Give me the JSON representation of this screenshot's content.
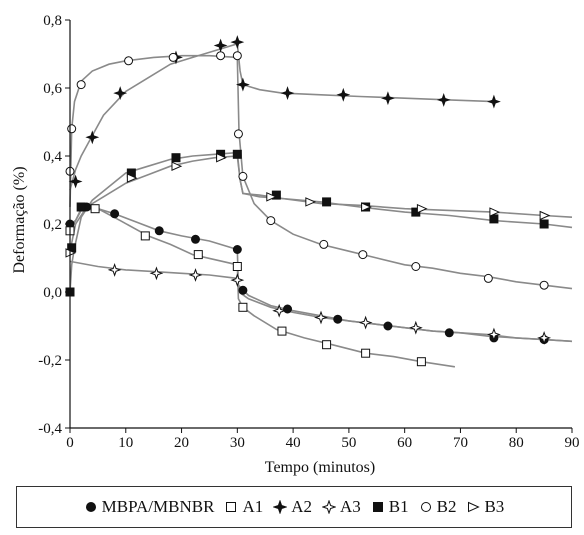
{
  "chart_data": {
    "type": "line",
    "xlabel": "Tempo (minutos)",
    "ylabel": "Deformação (%)",
    "xlim": [
      0,
      90
    ],
    "ylim": [
      -0.4,
      0.8
    ],
    "x_ticks": [
      "0",
      "10",
      "20",
      "30",
      "40",
      "50",
      "60",
      "70",
      "80",
      "90"
    ],
    "y_ticks": [
      "-0,4",
      "-0,2",
      "0,0",
      "0,2",
      "0,4",
      "0,6",
      "0,8"
    ],
    "legend_position": "bottom",
    "grid": false,
    "line_color": "#8a8a8a",
    "series": [
      {
        "name": "MBPA/MBNBR",
        "marker": "circle-filled",
        "curve": [
          [
            0,
            0.2
          ],
          [
            1,
            0.21
          ],
          [
            2,
            0.245
          ],
          [
            3,
            0.25
          ],
          [
            5,
            0.245
          ],
          [
            8,
            0.23
          ],
          [
            12,
            0.205
          ],
          [
            16,
            0.18
          ],
          [
            20,
            0.165
          ],
          [
            25,
            0.15
          ],
          [
            30,
            0.125
          ],
          [
            30.2,
            0.02
          ],
          [
            32,
            -0.01
          ],
          [
            36,
            -0.04
          ],
          [
            40,
            -0.055
          ],
          [
            45,
            -0.07
          ],
          [
            50,
            -0.085
          ],
          [
            55,
            -0.095
          ],
          [
            60,
            -0.105
          ],
          [
            65,
            -0.115
          ],
          [
            70,
            -0.12
          ],
          [
            75,
            -0.13
          ],
          [
            80,
            -0.135
          ],
          [
            85,
            -0.14
          ],
          [
            90,
            -0.145
          ]
        ],
        "markers": [
          [
            0,
            0.2
          ],
          [
            3,
            0.25
          ],
          [
            8,
            0.23
          ],
          [
            16,
            0.18
          ],
          [
            22.5,
            0.155
          ],
          [
            30,
            0.125
          ],
          [
            31,
            0.005
          ],
          [
            39,
            -0.05
          ],
          [
            48,
            -0.08
          ],
          [
            57,
            -0.1
          ],
          [
            68,
            -0.12
          ],
          [
            76,
            -0.135
          ],
          [
            85,
            -0.14
          ]
        ]
      },
      {
        "name": "A1",
        "marker": "square-open",
        "curve": [
          [
            0,
            0.18
          ],
          [
            2,
            0.24
          ],
          [
            5,
            0.245
          ],
          [
            9,
            0.21
          ],
          [
            14,
            0.165
          ],
          [
            18,
            0.14
          ],
          [
            22,
            0.11
          ],
          [
            26,
            0.095
          ],
          [
            30,
            0.08
          ],
          [
            30.2,
            -0.02
          ],
          [
            31,
            -0.045
          ],
          [
            33,
            -0.07
          ],
          [
            37,
            -0.11
          ],
          [
            42,
            -0.135
          ],
          [
            47,
            -0.155
          ],
          [
            53,
            -0.18
          ],
          [
            58,
            -0.19
          ],
          [
            63,
            -0.205
          ],
          [
            69,
            -0.22
          ]
        ],
        "markers": [
          [
            0,
            0.18
          ],
          [
            4.5,
            0.245
          ],
          [
            13.5,
            0.165
          ],
          [
            23,
            0.11
          ],
          [
            30,
            0.075
          ],
          [
            31,
            -0.045
          ],
          [
            38,
            -0.115
          ],
          [
            46,
            -0.155
          ],
          [
            53,
            -0.18
          ],
          [
            63,
            -0.205
          ]
        ]
      },
      {
        "name": "A2",
        "marker": "star-filled",
        "curve": [
          [
            0,
            0.3
          ],
          [
            1,
            0.36
          ],
          [
            2,
            0.4
          ],
          [
            4,
            0.46
          ],
          [
            6,
            0.52
          ],
          [
            10,
            0.59
          ],
          [
            14,
            0.63
          ],
          [
            18,
            0.67
          ],
          [
            22,
            0.69
          ],
          [
            26,
            0.71
          ],
          [
            30,
            0.73
          ],
          [
            30.5,
            0.65
          ],
          [
            31,
            0.61
          ],
          [
            34,
            0.595
          ],
          [
            38,
            0.585
          ],
          [
            45,
            0.58
          ],
          [
            52,
            0.575
          ],
          [
            60,
            0.57
          ],
          [
            68,
            0.565
          ],
          [
            76,
            0.56
          ]
        ],
        "markers": [
          [
            1,
            0.325
          ],
          [
            4,
            0.455
          ],
          [
            9,
            0.585
          ],
          [
            19,
            0.69
          ],
          [
            27,
            0.725
          ],
          [
            30,
            0.735
          ],
          [
            31,
            0.61
          ],
          [
            39,
            0.585
          ],
          [
            49,
            0.58
          ],
          [
            57,
            0.57
          ],
          [
            67,
            0.565
          ],
          [
            76,
            0.56
          ]
        ]
      },
      {
        "name": "A3",
        "marker": "star-open",
        "curve": [
          [
            0,
            0.09
          ],
          [
            5,
            0.075
          ],
          [
            10,
            0.065
          ],
          [
            15,
            0.06
          ],
          [
            20,
            0.055
          ],
          [
            25,
            0.05
          ],
          [
            30,
            0.04
          ],
          [
            30.3,
            0.0
          ],
          [
            32,
            -0.02
          ],
          [
            36,
            -0.045
          ],
          [
            40,
            -0.06
          ],
          [
            45,
            -0.075
          ],
          [
            50,
            -0.085
          ],
          [
            55,
            -0.095
          ],
          [
            60,
            -0.105
          ],
          [
            65,
            -0.115
          ],
          [
            70,
            -0.12
          ],
          [
            75,
            -0.125
          ],
          [
            80,
            -0.135
          ],
          [
            85,
            -0.14
          ],
          [
            90,
            -0.145
          ]
        ],
        "markers": [
          [
            8,
            0.065
          ],
          [
            15.5,
            0.055
          ],
          [
            22.5,
            0.05
          ],
          [
            30,
            0.035
          ],
          [
            37.5,
            -0.055
          ],
          [
            45,
            -0.075
          ],
          [
            53,
            -0.09
          ],
          [
            62,
            -0.105
          ],
          [
            76,
            -0.125
          ],
          [
            85,
            -0.135
          ]
        ]
      },
      {
        "name": "B1",
        "marker": "square-filled",
        "curve": [
          [
            0,
            0.0
          ],
          [
            0.3,
            0.08
          ],
          [
            0.8,
            0.13
          ],
          [
            2,
            0.22
          ],
          [
            4,
            0.27
          ],
          [
            7,
            0.31
          ],
          [
            10,
            0.35
          ],
          [
            14,
            0.37
          ],
          [
            18,
            0.39
          ],
          [
            22,
            0.4
          ],
          [
            26,
            0.405
          ],
          [
            30,
            0.41
          ],
          [
            30.5,
            0.33
          ],
          [
            31,
            0.29
          ],
          [
            34,
            0.285
          ],
          [
            38,
            0.275
          ],
          [
            45,
            0.265
          ],
          [
            52,
            0.25
          ],
          [
            60,
            0.235
          ],
          [
            68,
            0.225
          ],
          [
            76,
            0.21
          ],
          [
            85,
            0.2
          ],
          [
            90,
            0.19
          ]
        ],
        "markers": [
          [
            0,
            0.0
          ],
          [
            0.3,
            0.13
          ],
          [
            2,
            0.25
          ],
          [
            11,
            0.35
          ],
          [
            19,
            0.395
          ],
          [
            27,
            0.405
          ],
          [
            30,
            0.405
          ],
          [
            37,
            0.285
          ],
          [
            46,
            0.265
          ],
          [
            53,
            0.25
          ],
          [
            62,
            0.235
          ],
          [
            76,
            0.215
          ],
          [
            85,
            0.2
          ]
        ]
      },
      {
        "name": "B2",
        "marker": "circle-open",
        "curve": [
          [
            0,
            0.25
          ],
          [
            0.3,
            0.48
          ],
          [
            0.8,
            0.56
          ],
          [
            2,
            0.62
          ],
          [
            4,
            0.65
          ],
          [
            7,
            0.67
          ],
          [
            10,
            0.68
          ],
          [
            15,
            0.69
          ],
          [
            20,
            0.695
          ],
          [
            25,
            0.695
          ],
          [
            30,
            0.69
          ],
          [
            30.3,
            0.47
          ],
          [
            31,
            0.34
          ],
          [
            33,
            0.26
          ],
          [
            36,
            0.21
          ],
          [
            40,
            0.17
          ],
          [
            45,
            0.14
          ],
          [
            50,
            0.12
          ],
          [
            55,
            0.1
          ],
          [
            60,
            0.08
          ],
          [
            65,
            0.07
          ],
          [
            70,
            0.055
          ],
          [
            75,
            0.045
          ],
          [
            80,
            0.03
          ],
          [
            85,
            0.02
          ],
          [
            90,
            0.01
          ]
        ],
        "markers": [
          [
            0,
            0.355
          ],
          [
            0.3,
            0.48
          ],
          [
            2,
            0.61
          ],
          [
            10.5,
            0.68
          ],
          [
            18.5,
            0.69
          ],
          [
            27,
            0.695
          ],
          [
            30,
            0.695
          ],
          [
            30.2,
            0.465
          ],
          [
            31,
            0.34
          ],
          [
            36,
            0.21
          ],
          [
            45.5,
            0.14
          ],
          [
            52.5,
            0.11
          ],
          [
            62,
            0.075
          ],
          [
            75,
            0.04
          ],
          [
            85,
            0.02
          ]
        ]
      },
      {
        "name": "B3",
        "marker": "triangle-open",
        "curve": [
          [
            0,
            0.12
          ],
          [
            1,
            0.2
          ],
          [
            3,
            0.25
          ],
          [
            6,
            0.28
          ],
          [
            10,
            0.32
          ],
          [
            14,
            0.345
          ],
          [
            18,
            0.37
          ],
          [
            22,
            0.385
          ],
          [
            26,
            0.395
          ],
          [
            30,
            0.4
          ],
          [
            30.5,
            0.33
          ],
          [
            31,
            0.29
          ],
          [
            34,
            0.28
          ],
          [
            38,
            0.275
          ],
          [
            45,
            0.26
          ],
          [
            52,
            0.255
          ],
          [
            60,
            0.245
          ],
          [
            68,
            0.24
          ],
          [
            76,
            0.235
          ],
          [
            85,
            0.225
          ],
          [
            90,
            0.22
          ]
        ],
        "markers": [
          [
            0,
            0.115
          ],
          [
            11,
            0.335
          ],
          [
            19,
            0.37
          ],
          [
            27,
            0.395
          ],
          [
            36,
            0.28
          ],
          [
            43,
            0.265
          ],
          [
            53,
            0.25
          ],
          [
            63,
            0.245
          ],
          [
            76,
            0.235
          ],
          [
            85,
            0.225
          ]
        ]
      }
    ]
  }
}
